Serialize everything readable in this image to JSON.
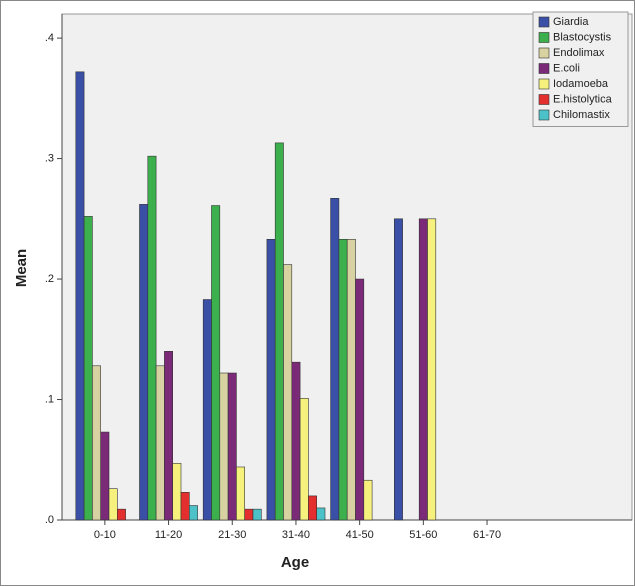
{
  "chart_data": {
    "type": "bar",
    "x_label": "Age",
    "y_label": "Mean",
    "categories": [
      "0-10",
      "11-20",
      "21-30",
      "31-40",
      "41-50",
      "51-60",
      "61-70"
    ],
    "series": [
      {
        "name": "Giardia",
        "color": "#3a4fa6",
        "values": [
          0.372,
          0.262,
          0.183,
          0.233,
          0.267,
          0.25,
          0
        ]
      },
      {
        "name": "Blastocystis",
        "color": "#3bb04c",
        "values": [
          0.252,
          0.302,
          0.261,
          0.313,
          0.233,
          0,
          0
        ]
      },
      {
        "name": "Endolimax",
        "color": "#d8d2a2",
        "values": [
          0.128,
          0.128,
          0.122,
          0.212,
          0.233,
          0,
          0
        ]
      },
      {
        "name": "E.coli",
        "color": "#7b2a78",
        "values": [
          0.073,
          0.14,
          0.122,
          0.131,
          0.2,
          0.25,
          0
        ]
      },
      {
        "name": "Iodamoeba",
        "color": "#f6f07c",
        "values": [
          0.026,
          0.047,
          0.044,
          0.101,
          0.033,
          0.25,
          0
        ]
      },
      {
        "name": "E.histolytica",
        "color": "#e3302f",
        "values": [
          0.009,
          0.023,
          0.009,
          0.02,
          0,
          0,
          0
        ]
      },
      {
        "name": "Chilomastix",
        "color": "#4cc2c8",
        "values": [
          0,
          0.012,
          0.009,
          0.01,
          0,
          0,
          0
        ]
      }
    ],
    "ylim": [
      0,
      0.42
    ],
    "yticks": [
      {
        "value": 0,
        "label": ".0"
      },
      {
        "value": 0.1,
        "label": ".1"
      },
      {
        "value": 0.2,
        "label": ".2"
      },
      {
        "value": 0.3,
        "label": ".3"
      },
      {
        "value": 0.4,
        "label": ".4"
      }
    ],
    "legend": "top-right",
    "grid": false
  }
}
